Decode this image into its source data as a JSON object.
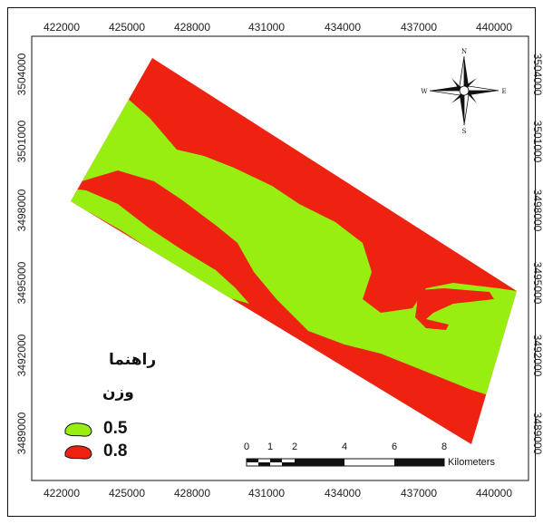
{
  "colors": {
    "low": "#99ee11",
    "high": "#ee2211",
    "frame": "#111111"
  },
  "top_ticks": [
    "422000",
    "425000",
    "428000",
    "431000",
    "434000",
    "437000",
    "440000"
  ],
  "bottom_ticks": [
    "422000",
    "425000",
    "428000",
    "431000",
    "434000",
    "437000",
    "440000"
  ],
  "left_ticks": [
    "3504000",
    "3501000",
    "3498000",
    "3495000",
    "3492000",
    "3489000"
  ],
  "right_ticks": [
    "3504000",
    "3501000",
    "3498000",
    "3495000",
    "3492000",
    "3489000"
  ],
  "compass": {
    "n": "N",
    "s": "S",
    "e": "E",
    "w": "W",
    "icon": "north-arrow-icon"
  },
  "legend": {
    "title_line1": "راهنما",
    "title_line2": "وزن",
    "items": [
      {
        "label": "0.5",
        "color": "#99ee11"
      },
      {
        "label": "0.8",
        "color": "#ee2211"
      }
    ]
  },
  "scalebar": {
    "labels": [
      "0",
      "1",
      "2",
      "4",
      "6",
      "8"
    ],
    "unit": "Kilometers"
  }
}
